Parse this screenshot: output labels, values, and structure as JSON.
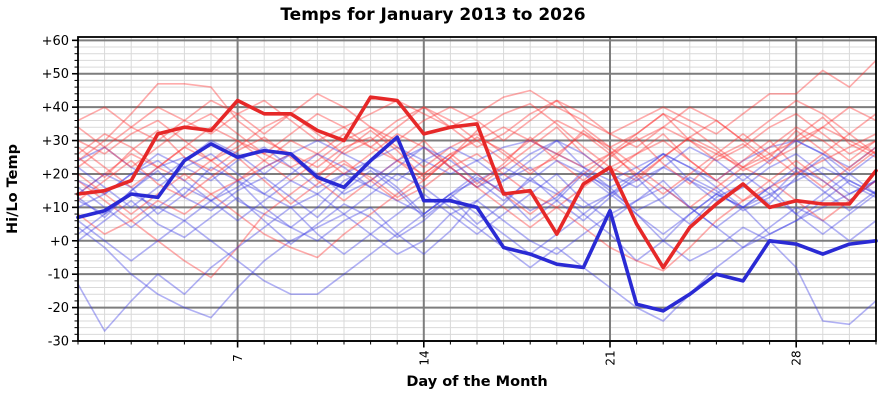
{
  "chart_data": {
    "type": "line",
    "title": "Temps for January 2013 to 2026",
    "xlabel": "Day of the Month",
    "ylabel": "Hi/Lo Temp",
    "xlim": [
      1,
      31
    ],
    "ylim": [
      -30,
      61
    ],
    "x_major_ticks": [
      7,
      14,
      21,
      28
    ],
    "x_minor_step": 1,
    "y_major_ticks": [
      60,
      50,
      40,
      30,
      20,
      10,
      0,
      -10,
      -20,
      -30
    ],
    "y_tick_labels": [
      "+60",
      "+50",
      "+40",
      "+30",
      "+20",
      "+10",
      "+0",
      "-10",
      "-20",
      "-30"
    ],
    "y_minor_step": 2,
    "grid": "both",
    "legend": "none",
    "colors": {
      "hi_bold": "#e62828",
      "lo_bold": "#2a2ad4",
      "hi_faint": "rgba(255,45,45,0.40)",
      "lo_faint": "rgba(60,60,230,0.40)",
      "grid_major": "#7d7d7d",
      "grid_minor": "#d9d9d9",
      "frame": "#000000"
    },
    "line_width_bold": 3.6,
    "line_width_faint": 1.6,
    "series": [
      {
        "name": "2013 High",
        "year": 2013,
        "role": "hi",
        "bold": false,
        "values": [
          24,
          30,
          38,
          47,
          47,
          46,
          36,
          30,
          26,
          22,
          28,
          31,
          24,
          18,
          25,
          33,
          38,
          41,
          35,
          28,
          22,
          18,
          25,
          31,
          36,
          30,
          24,
          28,
          34,
          40,
          36
        ]
      },
      {
        "name": "2013 Low",
        "year": 2013,
        "role": "lo",
        "bold": false,
        "values": [
          12,
          8,
          15,
          22,
          25,
          20,
          12,
          8,
          4,
          0,
          6,
          10,
          2,
          -4,
          3,
          12,
          18,
          22,
          15,
          8,
          2,
          -6,
          0,
          8,
          14,
          10,
          2,
          6,
          12,
          18,
          14
        ]
      },
      {
        "name": "2014 High",
        "year": 2014,
        "role": "hi",
        "bold": false,
        "values": [
          18,
          12,
          6,
          0,
          -6,
          -11,
          -2,
          8,
          14,
          20,
          24,
          18,
          12,
          16,
          22,
          26,
          20,
          14,
          10,
          16,
          22,
          26,
          30,
          24,
          18,
          12,
          16,
          20,
          24,
          28,
          32
        ]
      },
      {
        "name": "2014 Low",
        "year": 2014,
        "role": "lo",
        "bold": false,
        "values": [
          4,
          -2,
          -10,
          -16,
          -20,
          -23,
          -14,
          -6,
          0,
          4,
          8,
          2,
          -4,
          0,
          8,
          12,
          6,
          0,
          -4,
          2,
          8,
          12,
          16,
          10,
          4,
          -2,
          2,
          6,
          10,
          14,
          18
        ]
      },
      {
        "name": "2015 High",
        "year": 2015,
        "role": "hi",
        "bold": false,
        "values": [
          22,
          28,
          34,
          40,
          36,
          32,
          38,
          42,
          36,
          30,
          34,
          38,
          42,
          38,
          34,
          38,
          43,
          45,
          40,
          36,
          32,
          36,
          40,
          36,
          32,
          38,
          44,
          44,
          51,
          46,
          54
        ]
      },
      {
        "name": "2015 Low",
        "year": 2015,
        "role": "lo",
        "bold": false,
        "values": [
          10,
          14,
          20,
          26,
          22,
          18,
          24,
          28,
          22,
          16,
          20,
          24,
          28,
          24,
          20,
          24,
          28,
          30,
          26,
          22,
          18,
          22,
          26,
          22,
          18,
          24,
          28,
          30,
          26,
          22,
          28
        ]
      },
      {
        "name": "2016 High",
        "year": 2016,
        "role": "hi",
        "bold": false,
        "values": [
          14,
          20,
          26,
          22,
          18,
          24,
          30,
          26,
          22,
          26,
          32,
          28,
          24,
          20,
          26,
          30,
          34,
          30,
          26,
          22,
          26,
          30,
          34,
          30,
          26,
          22,
          26,
          30,
          34,
          30,
          26
        ]
      },
      {
        "name": "2016 Low",
        "year": 2016,
        "role": "lo",
        "bold": false,
        "values": [
          2,
          8,
          14,
          10,
          6,
          12,
          18,
          14,
          10,
          14,
          20,
          16,
          12,
          8,
          14,
          18,
          22,
          18,
          14,
          10,
          14,
          18,
          22,
          18,
          14,
          10,
          14,
          18,
          22,
          18,
          14
        ]
      },
      {
        "name": "2017 High",
        "year": 2017,
        "role": "hi",
        "bold": false,
        "values": [
          26,
          32,
          28,
          22,
          28,
          34,
          30,
          24,
          18,
          24,
          30,
          34,
          28,
          22,
          28,
          32,
          26,
          20,
          26,
          32,
          28,
          22,
          16,
          10,
          16,
          22,
          18,
          12,
          6,
          12,
          18
        ]
      },
      {
        "name": "2017 Low",
        "year": 2017,
        "role": "lo",
        "bold": false,
        "values": [
          14,
          20,
          16,
          8,
          14,
          22,
          18,
          10,
          4,
          10,
          18,
          22,
          16,
          8,
          14,
          20,
          14,
          6,
          12,
          20,
          16,
          8,
          0,
          -6,
          -2,
          4,
          0,
          -8,
          -24,
          -25,
          -18
        ]
      },
      {
        "name": "2018 High",
        "year": 2018,
        "role": "hi",
        "bold": false,
        "values": [
          8,
          2,
          6,
          12,
          8,
          14,
          18,
          22,
          26,
          18,
          12,
          18,
          24,
          30,
          22,
          16,
          22,
          28,
          34,
          26,
          20,
          26,
          32,
          24,
          18,
          24,
          30,
          22,
          16,
          22,
          28
        ]
      },
      {
        "name": "2018 Low",
        "year": 2018,
        "role": "lo",
        "bold": false,
        "values": [
          -13,
          -27,
          -18,
          -10,
          -16,
          -8,
          -2,
          4,
          10,
          2,
          -4,
          2,
          8,
          14,
          8,
          2,
          8,
          14,
          20,
          12,
          6,
          12,
          18,
          10,
          4,
          10,
          16,
          8,
          2,
          8,
          14
        ]
      },
      {
        "name": "2019 High",
        "year": 2019,
        "role": "hi",
        "bold": false,
        "values": [
          30,
          26,
          32,
          36,
          30,
          24,
          28,
          34,
          38,
          32,
          26,
          30,
          36,
          40,
          34,
          28,
          32,
          38,
          42,
          34,
          28,
          32,
          38,
          30,
          24,
          28,
          34,
          38,
          32,
          26,
          30
        ]
      },
      {
        "name": "2019 Low",
        "year": 2019,
        "role": "lo",
        "bold": false,
        "values": [
          18,
          14,
          20,
          24,
          18,
          12,
          16,
          22,
          26,
          20,
          14,
          18,
          24,
          28,
          22,
          16,
          20,
          26,
          30,
          22,
          16,
          20,
          26,
          18,
          12,
          16,
          22,
          26,
          20,
          14,
          18
        ]
      },
      {
        "name": "2020 High",
        "year": 2020,
        "role": "hi",
        "bold": false,
        "values": [
          20,
          14,
          8,
          14,
          20,
          14,
          8,
          2,
          -2,
          -5,
          2,
          8,
          14,
          20,
          26,
          20,
          14,
          8,
          14,
          20,
          26,
          20,
          14,
          20,
          26,
          32,
          26,
          20,
          26,
          32,
          26
        ]
      },
      {
        "name": "2020 Low",
        "year": 2020,
        "role": "lo",
        "bold": false,
        "values": [
          6,
          0,
          -6,
          0,
          6,
          0,
          -6,
          -12,
          -16,
          -16,
          -10,
          -4,
          2,
          8,
          14,
          8,
          2,
          -4,
          2,
          8,
          14,
          8,
          2,
          8,
          14,
          20,
          14,
          8,
          14,
          20,
          14
        ]
      },
      {
        "name": "2021 High",
        "year": 2021,
        "role": "hi",
        "bold": false,
        "values": [
          36,
          40,
          34,
          30,
          36,
          42,
          38,
          32,
          38,
          44,
          40,
          34,
          30,
          36,
          40,
          36,
          30,
          36,
          42,
          38,
          32,
          28,
          34,
          40,
          36,
          30,
          36,
          42,
          38,
          32,
          38
        ]
      },
      {
        "name": "2021 Low",
        "year": 2021,
        "role": "lo",
        "bold": false,
        "values": [
          24,
          28,
          22,
          18,
          24,
          30,
          26,
          20,
          26,
          30,
          26,
          22,
          18,
          24,
          28,
          24,
          18,
          24,
          30,
          26,
          20,
          16,
          22,
          28,
          24,
          18,
          24,
          30,
          26,
          20,
          26
        ]
      },
      {
        "name": "2022 High",
        "year": 2022,
        "role": "hi",
        "bold": false,
        "values": [
          28,
          22,
          16,
          22,
          28,
          24,
          18,
          24,
          30,
          26,
          20,
          26,
          32,
          28,
          22,
          16,
          10,
          4,
          10,
          4,
          -2,
          -6,
          -9,
          -2,
          6,
          12,
          18,
          24,
          18,
          12,
          18
        ]
      },
      {
        "name": "2022 Low",
        "year": 2022,
        "role": "lo",
        "bold": false,
        "values": [
          16,
          10,
          4,
          10,
          16,
          12,
          6,
          12,
          18,
          14,
          8,
          14,
          20,
          16,
          10,
          4,
          -2,
          -8,
          -2,
          -8,
          -14,
          -20,
          -24,
          -16,
          -8,
          -2,
          4,
          10,
          6,
          0,
          6
        ]
      },
      {
        "name": "2023 High",
        "year": 2023,
        "role": "hi",
        "bold": false,
        "values": [
          12,
          18,
          24,
          17,
          13,
          19,
          25,
          18,
          11,
          17,
          23,
          19,
          13,
          18,
          25,
          17,
          23,
          31,
          24,
          18,
          25,
          31,
          23,
          17,
          25,
          29,
          23,
          31,
          37,
          29,
          25
        ]
      },
      {
        "name": "2023 Low",
        "year": 2023,
        "role": "lo",
        "bold": false,
        "values": [
          0,
          6,
          12,
          5,
          1,
          7,
          13,
          6,
          -1,
          5,
          11,
          7,
          1,
          6,
          13,
          5,
          11,
          19,
          12,
          6,
          13,
          19,
          11,
          5,
          13,
          17,
          11,
          19,
          25,
          17,
          13
        ]
      },
      {
        "name": "2024 High",
        "year": 2024,
        "role": "hi",
        "bold": false,
        "values": [
          34,
          28,
          22,
          28,
          34,
          38,
          32,
          26,
          32,
          38,
          34,
          28,
          34,
          40,
          36,
          30,
          24,
          30,
          36,
          32,
          26,
          32,
          38,
          34,
          28,
          22,
          28,
          34,
          30,
          24,
          30
        ]
      },
      {
        "name": "2024 Low",
        "year": 2024,
        "role": "lo",
        "bold": false,
        "values": [
          22,
          16,
          10,
          16,
          22,
          26,
          20,
          14,
          20,
          26,
          22,
          16,
          22,
          28,
          24,
          18,
          12,
          18,
          24,
          20,
          14,
          20,
          26,
          22,
          16,
          10,
          16,
          22,
          18,
          12,
          18
        ]
      },
      {
        "name": "2025 High",
        "year": 2025,
        "role": "hi",
        "bold": false,
        "values": [
          25,
          19,
          27,
          33,
          25,
          21,
          27,
          31,
          25,
          19,
          27,
          33,
          27,
          19,
          25,
          31,
          27,
          21,
          25,
          33,
          27,
          19,
          25,
          31,
          27,
          21,
          25,
          33,
          27,
          21,
          27
        ]
      },
      {
        "name": "2025 Low",
        "year": 2025,
        "role": "lo",
        "bold": false,
        "values": [
          13,
          7,
          15,
          21,
          13,
          9,
          15,
          19,
          13,
          7,
          15,
          21,
          15,
          7,
          13,
          19,
          15,
          9,
          13,
          21,
          15,
          9,
          13,
          19,
          15,
          9,
          13,
          21,
          15,
          9,
          15
        ]
      },
      {
        "name": "2026 High",
        "year": 2026,
        "role": "hi",
        "bold": true,
        "values": [
          14,
          15,
          18,
          32,
          34,
          33,
          42,
          38,
          38,
          33,
          30,
          43,
          42,
          32,
          34,
          35,
          14,
          15,
          2,
          17,
          22,
          5,
          -8,
          4,
          11,
          17,
          10,
          12,
          11,
          11,
          21
        ]
      },
      {
        "name": "2026 Low",
        "year": 2026,
        "role": "lo",
        "bold": true,
        "values": [
          7,
          9,
          14,
          13,
          24,
          29,
          25,
          27,
          26,
          19,
          16,
          24,
          31,
          12,
          12,
          10,
          -2,
          -4,
          -7,
          -8,
          9,
          -19,
          -21,
          -16,
          -10,
          -12,
          0,
          -1,
          -4,
          -1,
          0
        ]
      }
    ]
  }
}
